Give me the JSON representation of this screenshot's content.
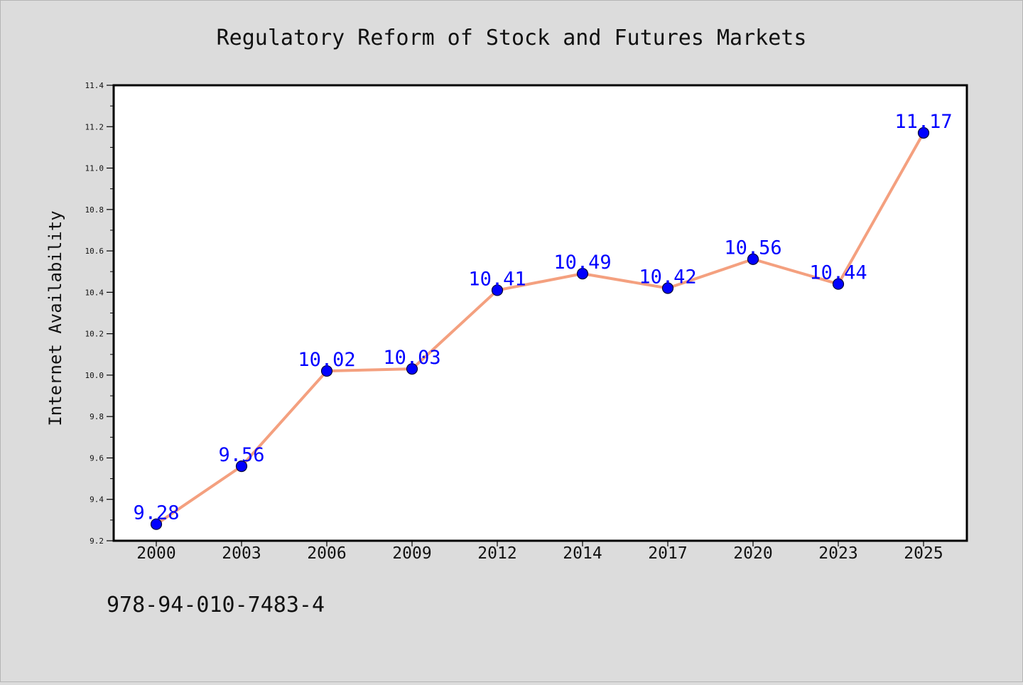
{
  "chart_data": {
    "type": "line",
    "title": "Regulatory Reform of Stock and Futures Markets",
    "xlabel": "",
    "ylabel": "Internet Availability",
    "categories": [
      "2000",
      "2003",
      "2006",
      "2009",
      "2012",
      "2014",
      "2017",
      "2020",
      "2023",
      "2025"
    ],
    "series": [
      {
        "values": [
          9.28,
          9.56,
          10.02,
          10.03,
          10.41,
          10.49,
          10.42,
          10.56,
          10.44,
          11.17
        ],
        "labels": [
          "9.28",
          "9.56",
          "10.02",
          "10.03",
          "10.41",
          "10.49",
          "10.42",
          "10.56",
          "10.44",
          "11.17"
        ],
        "line_color": "#f4a07f",
        "marker_color": "#0000ff",
        "label_color": "#0000ff"
      }
    ],
    "ylim": [
      9.2,
      11.4
    ],
    "yticks": [
      "9.2",
      "9.4",
      "9.6",
      "9.8",
      "10.0",
      "10.2",
      "10.4",
      "10.6",
      "10.8",
      "11.0",
      "11.2",
      "11.4"
    ],
    "grid": false,
    "legend": "none"
  },
  "footer": {
    "text": "978-94-010-7483-4"
  }
}
